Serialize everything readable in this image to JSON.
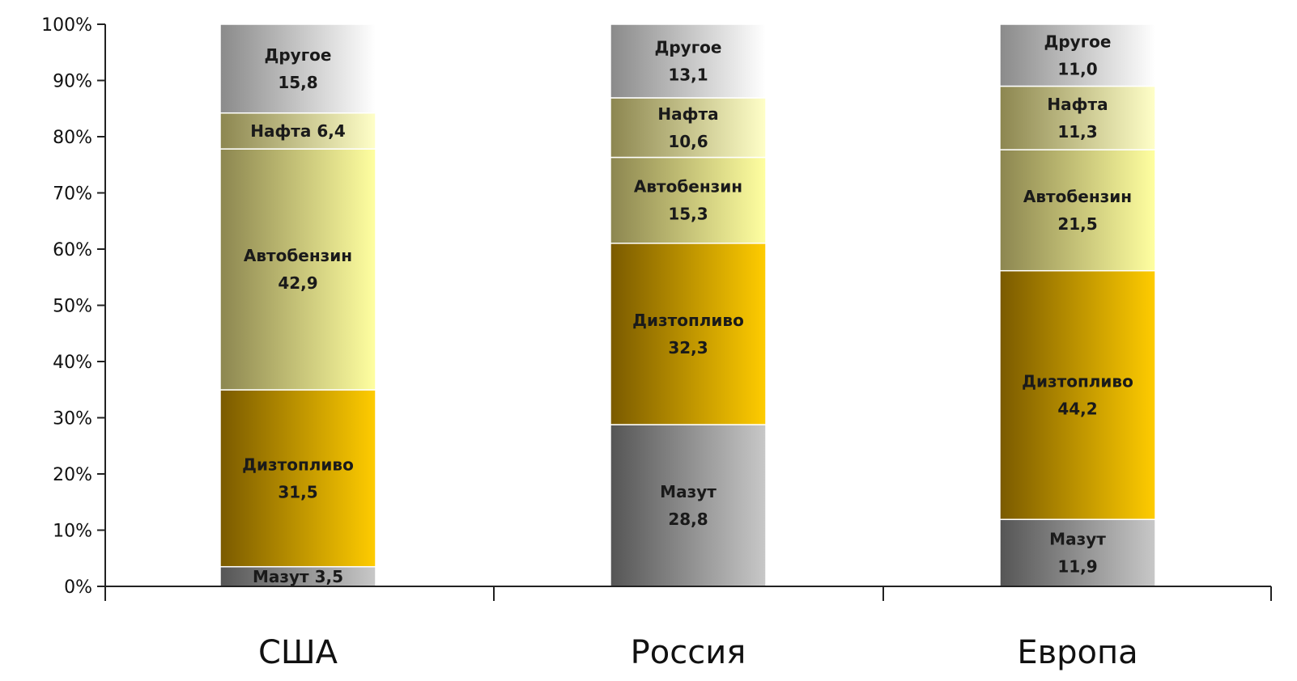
{
  "chart_data": {
    "type": "bar",
    "stacked": true,
    "percent_stacked": true,
    "categories": [
      "США",
      "Россия",
      "Европа"
    ],
    "ylim": [
      0,
      100
    ],
    "yticks": [
      "0%",
      "10%",
      "20%",
      "30%",
      "40%",
      "50%",
      "60%",
      "70%",
      "80%",
      "90%",
      "100%"
    ],
    "grid": false,
    "series": [
      {
        "name": "Мазут",
        "values": [
          3.5,
          28.8,
          11.9
        ],
        "labels": [
          "Мазут 3,5",
          "Мазут\n28,8",
          "Мазут\n11,9"
        ]
      },
      {
        "name": "Дизтопливо",
        "values": [
          31.5,
          32.3,
          44.2
        ],
        "labels": [
          "Дизтопливо\n31,5",
          "Дизтопливо\n32,3",
          "Дизтопливо\n44,2"
        ]
      },
      {
        "name": "Автобензин",
        "values": [
          42.9,
          15.3,
          21.5
        ],
        "labels": [
          "Автобензин\n42,9",
          "Автобензин\n15,3",
          "Автобензин\n21,5"
        ]
      },
      {
        "name": "Нафта",
        "values": [
          6.4,
          10.6,
          11.3
        ],
        "labels": [
          "Нафта 6,4",
          "Нафта\n10,6",
          "Нафта\n11,3"
        ]
      },
      {
        "name": "Другое",
        "values": [
          15.8,
          13.1,
          11.0
        ],
        "labels": [
          "Другое\n15,8",
          "Другое\n13,1",
          "Другое\n11,0"
        ]
      }
    ],
    "colors": {
      "Мазут": [
        "#555555",
        "#c8c8c8"
      ],
      "Дизтопливо": [
        "#7a5a00",
        "#ffcc00"
      ],
      "Автобензин": [
        "#8c8650",
        "#ffffa0"
      ],
      "Нафта": [
        "#8c8650",
        "#ffffc8"
      ],
      "Другое": [
        "#8a8a8a",
        "#ffffff"
      ]
    }
  }
}
